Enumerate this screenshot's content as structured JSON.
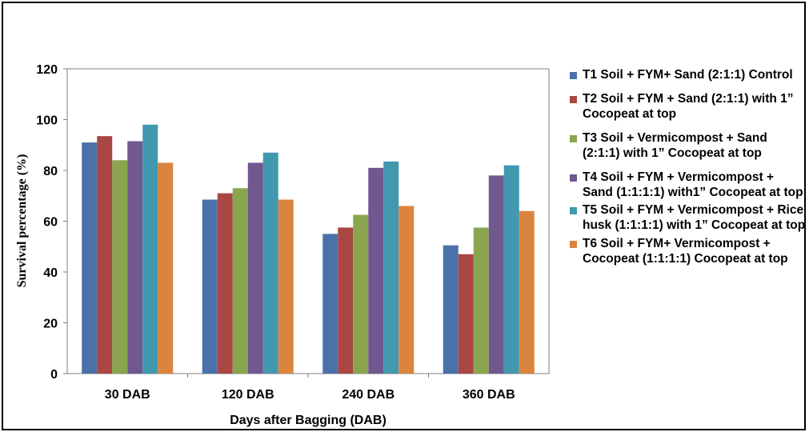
{
  "chart_data": {
    "type": "bar",
    "categories": [
      "30 DAB",
      "120 DAB",
      "240 DAB",
      "360 DAB"
    ],
    "series": [
      {
        "name": "T1 Soil + FYM+ Sand (2:1:1) Control",
        "color": "#4A72A8",
        "values": [
          91,
          68.5,
          55,
          50.5
        ]
      },
      {
        "name": "T2 Soil + FYM + Sand (2:1:1) with 1” Cocopeat at top",
        "color": "#AA4643",
        "values": [
          93.5,
          71,
          57.5,
          47
        ]
      },
      {
        "name": "T3 Soil + Vermicompost + Sand (2:1:1) with 1” Cocopeat at top",
        "color": "#89A54E",
        "values": [
          84,
          73,
          62.5,
          57.5
        ]
      },
      {
        "name": "T4 Soil + FYM + Vermicompost + Sand (1:1:1:1) with1” Cocopeat at top",
        "color": "#71588F",
        "values": [
          91.5,
          83,
          81,
          78
        ]
      },
      {
        "name": "T5 Soil + FYM + Vermicompost + Rice husk (1:1:1:1) with 1” Cocopeat at top",
        "color": "#4198AF",
        "values": [
          98,
          87,
          83.5,
          82
        ]
      },
      {
        "name": "T6 Soil + FYM+ Vermicompost + Cocopeat (1:1:1:1) Cocopeat at top",
        "color": "#DB843D",
        "values": [
          83,
          68.5,
          66,
          64
        ]
      }
    ],
    "xlabel": "Days after Bagging (DAB)",
    "ylabel": "Survival percentage (%)",
    "ylim": [
      0,
      120
    ],
    "yticks": [
      "0",
      "20",
      "40",
      "60",
      "80",
      "100",
      "120"
    ],
    "grid": false,
    "legend_position": "right"
  }
}
